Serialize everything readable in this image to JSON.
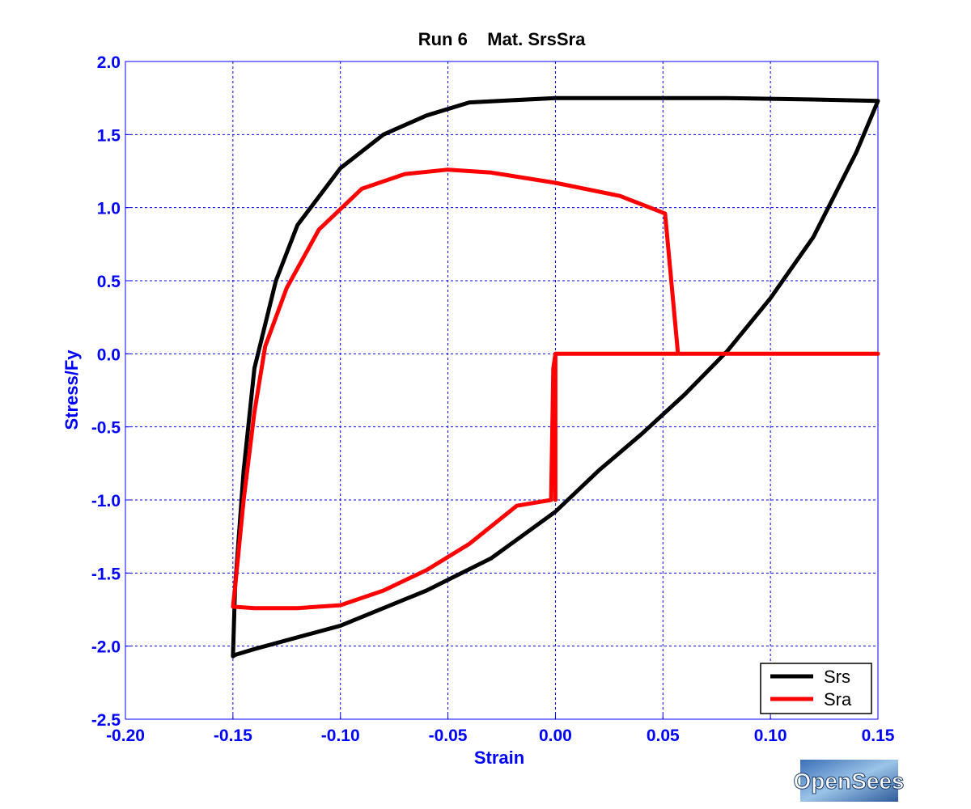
{
  "chart_data": {
    "type": "line",
    "title": "Run 6    Mat. SrsSra",
    "xlabel": "Strain",
    "ylabel": "Stress/Fy",
    "xlim": [
      -0.2,
      0.15
    ],
    "ylim": [
      -2.5,
      2.0
    ],
    "xticks": [
      "-0.20",
      "-0.15",
      "-0.10",
      "-0.05",
      "0.00",
      "0.05",
      "0.10",
      "0.15"
    ],
    "yticks": [
      "2.0",
      "1.5",
      "1.0",
      "0.5",
      "0.0",
      "-0.5",
      "-1.0",
      "-1.5",
      "-2.0",
      "-2.5"
    ],
    "grid": true,
    "legend_position": "bottom-right",
    "series": [
      {
        "name": "Srs",
        "color": "#000000",
        "x": [
          0.0,
          0.02,
          0.04,
          0.06,
          0.08,
          0.1,
          0.12,
          0.14,
          0.15,
          0.12,
          0.08,
          0.04,
          0.0,
          -0.04,
          -0.06,
          -0.08,
          -0.1,
          -0.12,
          -0.13,
          -0.14,
          -0.145,
          -0.149,
          -0.15,
          -0.149,
          -0.14,
          -0.12,
          -0.1,
          -0.06,
          -0.03,
          0.0
        ],
        "y": [
          -1.08,
          -0.8,
          -0.55,
          -0.28,
          0.02,
          0.38,
          0.8,
          1.38,
          1.73,
          1.74,
          1.75,
          1.75,
          1.75,
          1.72,
          1.63,
          1.5,
          1.27,
          0.88,
          0.5,
          -0.1,
          -0.8,
          -1.6,
          -2.07,
          -2.06,
          -2.02,
          -1.94,
          -1.86,
          -1.62,
          -1.4,
          -1.08
        ]
      },
      {
        "name": "Sra",
        "color": "#ff0000",
        "x": [
          0.0,
          0.0,
          0.05,
          0.1,
          0.15,
          0.15,
          0.057,
          0.051,
          0.03,
          0.0,
          -0.03,
          -0.05,
          -0.07,
          -0.09,
          -0.11,
          -0.125,
          -0.135,
          -0.14,
          -0.145,
          -0.149,
          -0.15,
          -0.14,
          -0.12,
          -0.1,
          -0.08,
          -0.06,
          -0.04,
          -0.018,
          -0.002,
          -0.001,
          0.0
        ],
        "y": [
          -1.0,
          0.0,
          0.0,
          0.0,
          0.0,
          0.0,
          0.0,
          0.96,
          1.08,
          1.17,
          1.24,
          1.26,
          1.23,
          1.13,
          0.85,
          0.45,
          0.05,
          -0.4,
          -1.0,
          -1.6,
          -1.73,
          -1.74,
          -1.74,
          -1.72,
          -1.62,
          -1.48,
          -1.3,
          -1.04,
          -1.0,
          -0.1,
          0.0
        ]
      }
    ]
  },
  "logo": {
    "text": "OpenSees"
  }
}
